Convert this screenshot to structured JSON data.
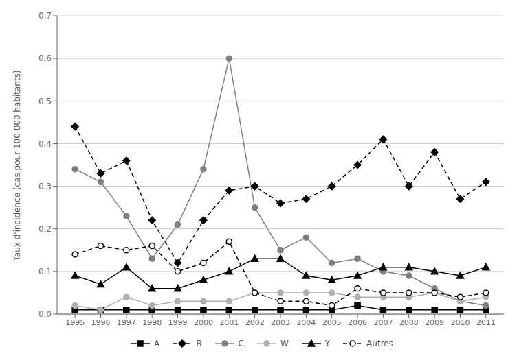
{
  "chart_data": {
    "type": "line",
    "ylabel": "Taux d'incidence (cas pour 100 000 habitants)",
    "x": [
      1995,
      1996,
      1997,
      1998,
      1999,
      2000,
      2001,
      2002,
      2003,
      2004,
      2005,
      2006,
      2007,
      2008,
      2009,
      2010,
      2011
    ],
    "xlim": [
      1994.3,
      2011.7
    ],
    "xticks": [
      1995,
      1996,
      1997,
      1998,
      1999,
      2000,
      2001,
      2002,
      2003,
      2004,
      2005,
      2006,
      2007,
      2008,
      2009,
      2010,
      2011
    ],
    "ylim": [
      0,
      0.7
    ],
    "yticks": [
      {
        "value": 0,
        "label": "0.0"
      },
      0.1,
      0.2,
      0.3,
      0.4,
      0.5,
      0.6,
      0.7
    ],
    "grid": "y",
    "legend": "bottom",
    "series": [
      {
        "name": "A",
        "color": "#000000",
        "line_style": "solid",
        "marker": "square",
        "values": [
          0.01,
          0.01,
          0.01,
          0.01,
          0.01,
          0.01,
          0.01,
          0.01,
          0.01,
          0.01,
          0.01,
          0.02,
          0.01,
          0.01,
          0.01,
          0.01,
          0.01
        ]
      },
      {
        "name": "B",
        "color": "#000000",
        "line_style": "dashed",
        "marker": "diamond",
        "values": [
          0.44,
          0.33,
          0.36,
          0.22,
          0.12,
          0.22,
          0.29,
          0.3,
          0.26,
          0.27,
          0.3,
          0.35,
          0.41,
          0.3,
          0.38,
          0.27,
          0.31
        ]
      },
      {
        "name": "C",
        "color": "#808080",
        "line_style": "solid",
        "marker": "circle",
        "values": [
          0.34,
          0.31,
          0.23,
          0.13,
          0.21,
          0.34,
          0.6,
          0.25,
          0.15,
          0.18,
          0.12,
          0.13,
          0.1,
          0.09,
          0.06,
          0.03,
          0.02
        ]
      },
      {
        "name": "W",
        "color": "#b0b0b0",
        "line_style": "solid",
        "marker": "circle",
        "values": [
          0.02,
          0.01,
          0.04,
          0.02,
          0.03,
          0.03,
          0.03,
          0.05,
          0.05,
          0.05,
          0.05,
          0.04,
          0.04,
          0.04,
          0.05,
          0.03,
          0.04
        ]
      },
      {
        "name": "Y",
        "color": "#000000",
        "line_style": "solid",
        "marker": "triangle",
        "values": [
          0.09,
          0.07,
          0.11,
          0.06,
          0.06,
          0.08,
          0.1,
          0.13,
          0.13,
          0.09,
          0.08,
          0.09,
          0.11,
          0.11,
          0.1,
          0.09,
          0.11
        ]
      },
      {
        "name": "Autres",
        "color": "#000000",
        "line_style": "dashed",
        "marker": "open_circle",
        "values": [
          0.14,
          0.16,
          0.15,
          0.16,
          0.1,
          0.12,
          0.17,
          0.05,
          0.03,
          0.03,
          0.02,
          0.06,
          0.05,
          0.05,
          0.05,
          0.04,
          0.05
        ]
      }
    ]
  }
}
